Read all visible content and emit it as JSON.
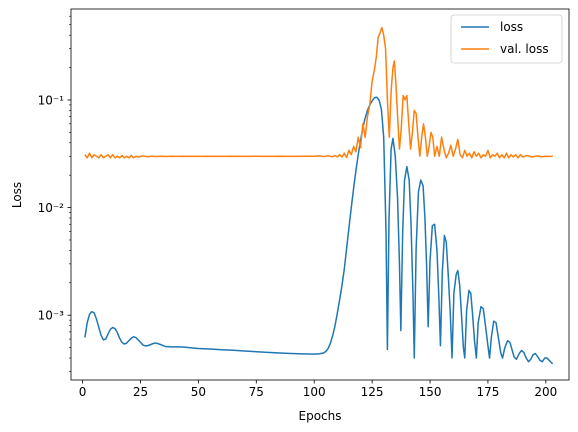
{
  "chart_data": {
    "type": "line",
    "title": "",
    "xlabel": "Epochs",
    "ylabel": "Loss",
    "xlim": [
      -5,
      210
    ],
    "ylim": [
      0.00025,
      0.7
    ],
    "yscale": "log",
    "grid": false,
    "legend_placement": "top-right",
    "x_ticks": [
      0,
      25,
      50,
      75,
      100,
      125,
      150,
      175,
      200
    ],
    "x_tick_labels": [
      "0",
      "25",
      "50",
      "75",
      "100",
      "125",
      "150",
      "175",
      "200"
    ],
    "y_ticks": [
      0.001,
      0.01,
      0.1
    ],
    "y_tick_labels": [
      "10⁻³",
      "10⁻²",
      "10⁻¹"
    ],
    "series": [
      {
        "name": "loss",
        "color": "#1f77b4",
        "points": [
          [
            1,
            0.00062
          ],
          [
            2,
            0.00085
          ],
          [
            3,
            0.00102
          ],
          [
            4,
            0.00108
          ],
          [
            5,
            0.00105
          ],
          [
            6,
            0.00092
          ],
          [
            7,
            0.00077
          ],
          [
            8,
            0.00065
          ],
          [
            9,
            0.00059
          ],
          [
            10,
            0.0006
          ],
          [
            11,
            0.00067
          ],
          [
            12,
            0.00074
          ],
          [
            13,
            0.00077
          ],
          [
            14,
            0.00075
          ],
          [
            15,
            0.00069
          ],
          [
            16,
            0.00061
          ],
          [
            17,
            0.00056
          ],
          [
            18,
            0.00054
          ],
          [
            19,
            0.00055
          ],
          [
            20,
            0.00058
          ],
          [
            21,
            0.00061
          ],
          [
            22,
            0.00063
          ],
          [
            23,
            0.00062
          ],
          [
            24,
            0.00059
          ],
          [
            25,
            0.00056
          ],
          [
            26,
            0.00053
          ],
          [
            27,
            0.00052
          ],
          [
            28,
            0.00052
          ],
          [
            29,
            0.00053
          ],
          [
            30,
            0.00054
          ],
          [
            31,
            0.00055
          ],
          [
            32,
            0.00055
          ],
          [
            33,
            0.00054
          ],
          [
            34,
            0.00053
          ],
          [
            35,
            0.00052
          ],
          [
            36,
            0.00051
          ],
          [
            37,
            0.00051
          ],
          [
            38,
            0.000508
          ],
          [
            40,
            0.000508
          ],
          [
            42,
            0.000508
          ],
          [
            44,
            0.000505
          ],
          [
            46,
            0.0005
          ],
          [
            48,
            0.000495
          ],
          [
            50,
            0.00049
          ],
          [
            55,
            0.000485
          ],
          [
            60,
            0.000478
          ],
          [
            65,
            0.000472
          ],
          [
            70,
            0.000465
          ],
          [
            75,
            0.000458
          ],
          [
            80,
            0.000451
          ],
          [
            85,
            0.000446
          ],
          [
            90,
            0.000441
          ],
          [
            95,
            0.000437
          ],
          [
            100,
            0.000435
          ],
          [
            102,
            0.000437
          ],
          [
            104,
            0.000445
          ],
          [
            105,
            0.00046
          ],
          [
            106,
            0.00049
          ],
          [
            107,
            0.00055
          ],
          [
            108,
            0.00065
          ],
          [
            109,
            0.0008
          ],
          [
            110,
            0.00105
          ],
          [
            111,
            0.0014
          ],
          [
            112,
            0.0019
          ],
          [
            113,
            0.0027
          ],
          [
            114,
            0.0042
          ],
          [
            115,
            0.0065
          ],
          [
            116,
            0.01
          ],
          [
            117,
            0.015
          ],
          [
            118,
            0.022
          ],
          [
            119,
            0.031
          ],
          [
            120,
            0.042
          ],
          [
            121,
            0.055
          ],
          [
            122,
            0.068
          ],
          [
            123,
            0.08
          ],
          [
            124,
            0.09
          ],
          [
            125,
            0.098
          ],
          [
            126,
            0.105
          ],
          [
            127,
            0.106
          ],
          [
            128,
            0.1
          ],
          [
            129,
            0.082
          ],
          [
            130,
            0.045
          ],
          [
            131,
            0.006
          ],
          [
            131.6,
            0.00048
          ],
          [
            132.3,
            0.008
          ],
          [
            133.2,
            0.035
          ],
          [
            134,
            0.044
          ],
          [
            135,
            0.03
          ],
          [
            136,
            0.012
          ],
          [
            136.8,
            0.003
          ],
          [
            137.4,
            0.00072
          ],
          [
            138.2,
            0.006
          ],
          [
            139,
            0.018
          ],
          [
            140,
            0.024
          ],
          [
            141,
            0.018
          ],
          [
            141.8,
            0.007
          ],
          [
            142.6,
            0.0017
          ],
          [
            143.2,
            0.0004
          ],
          [
            144,
            0.0042
          ],
          [
            145,
            0.014
          ],
          [
            146,
            0.018
          ],
          [
            147,
            0.016
          ],
          [
            147.8,
            0.008
          ],
          [
            148.5,
            0.003
          ],
          [
            149.2,
            0.00078
          ],
          [
            150,
            0.0032
          ],
          [
            151,
            0.0068
          ],
          [
            152,
            0.007
          ],
          [
            153,
            0.004
          ],
          [
            153.8,
            0.0015
          ],
          [
            154.5,
            0.00052
          ],
          [
            155.3,
            0.0025
          ],
          [
            156.2,
            0.0055
          ],
          [
            157,
            0.0048
          ],
          [
            157.8,
            0.0025
          ],
          [
            158.7,
            0.0011
          ],
          [
            159.5,
            0.0004
          ],
          [
            160.3,
            0.0016
          ],
          [
            161.3,
            0.0024
          ],
          [
            162,
            0.0026
          ],
          [
            162.8,
            0.0019
          ],
          [
            163.6,
            0.001
          ],
          [
            164.4,
            0.0005
          ],
          [
            165,
            0.0004
          ],
          [
            165.8,
            0.0011
          ],
          [
            166.8,
            0.0017
          ],
          [
            167.6,
            0.0016
          ],
          [
            168.4,
            0.001
          ],
          [
            169.2,
            0.00058
          ],
          [
            170,
            0.0004
          ],
          [
            170.8,
            0.00085
          ],
          [
            172,
            0.0012
          ],
          [
            173,
            0.00115
          ],
          [
            174,
            0.00078
          ],
          [
            175,
            0.00052
          ],
          [
            175.7,
            0.0004
          ],
          [
            176.5,
            0.00063
          ],
          [
            177.5,
            0.00088
          ],
          [
            178.5,
            0.00085
          ],
          [
            179.5,
            0.00062
          ],
          [
            180.5,
            0.00045
          ],
          [
            181.3,
            0.0004
          ],
          [
            182.3,
            0.0005
          ],
          [
            183.5,
            0.00058
          ],
          [
            184.5,
            0.00056
          ],
          [
            185.5,
            0.00047
          ],
          [
            186.3,
            0.00041
          ],
          [
            187.3,
            0.00039
          ],
          [
            188.5,
            0.00044
          ],
          [
            189.5,
            0.00047
          ],
          [
            190.5,
            0.00045
          ],
          [
            191.5,
            0.0004
          ],
          [
            192.5,
            0.00037
          ],
          [
            193.5,
            0.00039
          ],
          [
            194.5,
            0.00043
          ],
          [
            195.5,
            0.00044
          ],
          [
            196.5,
            0.00041
          ],
          [
            197.5,
            0.00038
          ],
          [
            198.5,
            0.00037
          ],
          [
            199.5,
            0.0004
          ],
          [
            200.5,
            0.0004
          ],
          [
            201.5,
            0.00038
          ],
          [
            202.5,
            0.00036
          ],
          [
            203,
            0.000355
          ]
        ]
      },
      {
        "name": "val. loss",
        "color": "#ff7f0e",
        "points": [
          [
            1,
            0.031
          ],
          [
            2,
            0.029
          ],
          [
            3,
            0.032
          ],
          [
            4,
            0.029
          ],
          [
            5,
            0.031
          ],
          [
            6,
            0.03
          ],
          [
            7,
            0.029
          ],
          [
            8,
            0.031
          ],
          [
            9,
            0.029
          ],
          [
            10,
            0.03
          ],
          [
            11,
            0.031
          ],
          [
            12,
            0.029
          ],
          [
            13,
            0.031
          ],
          [
            14,
            0.029
          ],
          [
            15,
            0.03
          ],
          [
            16,
            0.029
          ],
          [
            17,
            0.0305
          ],
          [
            18,
            0.029
          ],
          [
            19,
            0.03
          ],
          [
            20,
            0.029
          ],
          [
            21,
            0.0305
          ],
          [
            22,
            0.029
          ],
          [
            23,
            0.03
          ],
          [
            24,
            0.0295
          ],
          [
            26,
            0.0302
          ],
          [
            28,
            0.0297
          ],
          [
            30,
            0.03
          ],
          [
            32,
            0.0298
          ],
          [
            34,
            0.03
          ],
          [
            36,
            0.0298
          ],
          [
            38,
            0.03
          ],
          [
            40,
            0.0299
          ],
          [
            45,
            0.03
          ],
          [
            50,
            0.0299
          ],
          [
            55,
            0.03
          ],
          [
            60,
            0.0299
          ],
          [
            65,
            0.03
          ],
          [
            70,
            0.0299
          ],
          [
            75,
            0.03
          ],
          [
            80,
            0.0299
          ],
          [
            85,
            0.03
          ],
          [
            90,
            0.0299
          ],
          [
            95,
            0.03
          ],
          [
            100,
            0.03
          ],
          [
            102,
            0.0302
          ],
          [
            104,
            0.0298
          ],
          [
            106,
            0.0302
          ],
          [
            108,
            0.0297
          ],
          [
            109,
            0.0305
          ],
          [
            110,
            0.0296
          ],
          [
            111,
            0.031
          ],
          [
            112,
            0.0295
          ],
          [
            113,
            0.032
          ],
          [
            114,
            0.0292
          ],
          [
            115,
            0.034
          ],
          [
            116,
            0.031
          ],
          [
            117,
            0.037
          ],
          [
            118,
            0.033
          ],
          [
            119,
            0.045
          ],
          [
            120,
            0.036
          ],
          [
            121,
            0.06
          ],
          [
            122,
            0.045
          ],
          [
            123,
            0.07
          ],
          [
            124,
            0.09
          ],
          [
            125,
            0.15
          ],
          [
            126,
            0.19
          ],
          [
            126.8,
            0.25
          ],
          [
            127.6,
            0.38
          ],
          [
            128.4,
            0.42
          ],
          [
            129.2,
            0.47
          ],
          [
            130,
            0.4
          ],
          [
            130.8,
            0.3
          ],
          [
            131.6,
            0.1
          ],
          [
            132.4,
            0.045
          ],
          [
            133.2,
            0.12
          ],
          [
            134,
            0.2
          ],
          [
            134.6,
            0.23
          ],
          [
            135.2,
            0.15
          ],
          [
            136,
            0.07
          ],
          [
            136.8,
            0.035
          ],
          [
            137.6,
            0.055
          ],
          [
            138.4,
            0.11
          ],
          [
            139.2,
            0.1
          ],
          [
            140,
            0.11
          ],
          [
            140.8,
            0.06
          ],
          [
            141.6,
            0.035
          ],
          [
            142.4,
            0.05
          ],
          [
            143.2,
            0.08
          ],
          [
            144,
            0.075
          ],
          [
            144.8,
            0.045
          ],
          [
            145.6,
            0.03
          ],
          [
            146.4,
            0.045
          ],
          [
            147.2,
            0.06
          ],
          [
            148,
            0.045
          ],
          [
            148.8,
            0.03
          ],
          [
            149.6,
            0.037
          ],
          [
            150.4,
            0.05
          ],
          [
            151.2,
            0.045
          ],
          [
            152,
            0.03
          ],
          [
            153,
            0.037
          ],
          [
            154,
            0.03
          ],
          [
            155,
            0.045
          ],
          [
            156,
            0.035
          ],
          [
            157,
            0.029
          ],
          [
            158,
            0.032
          ],
          [
            159,
            0.038
          ],
          [
            160,
            0.03
          ],
          [
            161,
            0.035
          ],
          [
            162,
            0.043
          ],
          [
            163,
            0.031
          ],
          [
            164,
            0.029
          ],
          [
            165,
            0.034
          ],
          [
            166,
            0.03
          ],
          [
            167,
            0.032
          ],
          [
            168,
            0.029
          ],
          [
            169,
            0.033
          ],
          [
            170,
            0.03
          ],
          [
            171,
            0.032
          ],
          [
            172,
            0.029
          ],
          [
            173,
            0.031
          ],
          [
            174,
            0.03
          ],
          [
            175,
            0.034
          ],
          [
            176,
            0.029
          ],
          [
            177,
            0.031
          ],
          [
            178,
            0.03
          ],
          [
            179,
            0.032
          ],
          [
            180,
            0.029
          ],
          [
            181,
            0.031
          ],
          [
            182,
            0.029
          ],
          [
            183,
            0.032
          ],
          [
            184,
            0.029
          ],
          [
            185,
            0.031
          ],
          [
            186,
            0.0295
          ],
          [
            187,
            0.031
          ],
          [
            188,
            0.029
          ],
          [
            189,
            0.031
          ],
          [
            190,
            0.0295
          ],
          [
            192,
            0.0305
          ],
          [
            194,
            0.0295
          ],
          [
            196,
            0.0302
          ],
          [
            198,
            0.0297
          ],
          [
            200,
            0.03
          ],
          [
            202,
            0.0298
          ],
          [
            203,
            0.0301
          ]
        ]
      }
    ]
  }
}
